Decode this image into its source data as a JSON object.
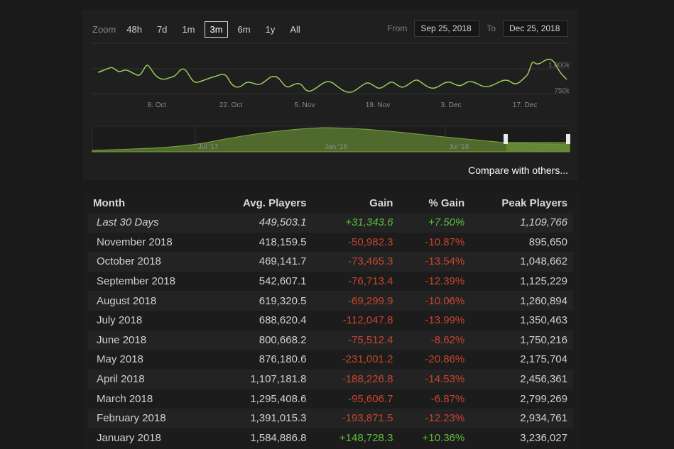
{
  "zoom": {
    "label": "Zoom",
    "options": [
      "48h",
      "7d",
      "1m",
      "3m",
      "6m",
      "1y",
      "All"
    ],
    "active": "3m"
  },
  "range": {
    "from_label": "From",
    "from_value": "Sep 25, 2018",
    "to_label": "To",
    "to_value": "Dec 25, 2018"
  },
  "chart": {
    "x_ticks": [
      "8. Oct",
      "22. Oct",
      "5. Nov",
      "19. Nov",
      "3. Dec",
      "17. Dec"
    ],
    "y_ticks": [
      "1,000k",
      "750k"
    ],
    "navigator_ticks": [
      "Jul '17",
      "Jan '18",
      "Jul '18"
    ],
    "line_color": "#9ccb5a",
    "navigator_fill": "#4f6a2c"
  },
  "compare_label": "Compare with others...",
  "table": {
    "headers": [
      "Month",
      "Avg. Players",
      "Gain",
      "% Gain",
      "Peak Players"
    ],
    "rows": [
      {
        "month": "Last 30 Days",
        "avg": "449,503.1",
        "gain": "+31,343.6",
        "pct": "+7.50%",
        "peak": "1,109,766",
        "sign": "pos"
      },
      {
        "month": "November 2018",
        "avg": "418,159.5",
        "gain": "-50,982.3",
        "pct": "-10.87%",
        "peak": "895,650",
        "sign": "neg"
      },
      {
        "month": "October 2018",
        "avg": "469,141.7",
        "gain": "-73,465.3",
        "pct": "-13.54%",
        "peak": "1,048,662",
        "sign": "neg"
      },
      {
        "month": "September 2018",
        "avg": "542,607.1",
        "gain": "-76,713.4",
        "pct": "-12.39%",
        "peak": "1,125,229",
        "sign": "neg"
      },
      {
        "month": "August 2018",
        "avg": "619,320.5",
        "gain": "-69,299.9",
        "pct": "-10.06%",
        "peak": "1,260,894",
        "sign": "neg"
      },
      {
        "month": "July 2018",
        "avg": "688,620.4",
        "gain": "-112,047.8",
        "pct": "-13.99%",
        "peak": "1,350,463",
        "sign": "neg"
      },
      {
        "month": "June 2018",
        "avg": "800,668.2",
        "gain": "-75,512.4",
        "pct": "-8.62%",
        "peak": "1,750,216",
        "sign": "neg"
      },
      {
        "month": "May 2018",
        "avg": "876,180.6",
        "gain": "-231,001.2",
        "pct": "-20.86%",
        "peak": "2,175,704",
        "sign": "neg"
      },
      {
        "month": "April 2018",
        "avg": "1,107,181.8",
        "gain": "-188,226.8",
        "pct": "-14.53%",
        "peak": "2,456,361",
        "sign": "neg"
      },
      {
        "month": "March 2018",
        "avg": "1,295,408.6",
        "gain": "-95,606.7",
        "pct": "-6.87%",
        "peak": "2,799,269",
        "sign": "neg"
      },
      {
        "month": "February 2018",
        "avg": "1,391,015.3",
        "gain": "-193,871.5",
        "pct": "-12.23%",
        "peak": "2,934,761",
        "sign": "neg"
      },
      {
        "month": "January 2018",
        "avg": "1,584,886.8",
        "gain": "+148,728.3",
        "pct": "+10.36%",
        "peak": "3,236,027",
        "sign": "pos"
      }
    ]
  }
}
